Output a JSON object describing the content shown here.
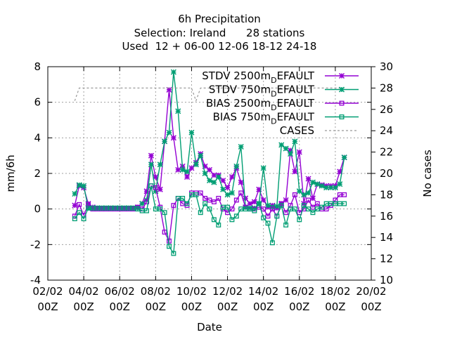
{
  "title_lines": [
    "6h Precipitation",
    "Selection: Ireland      28 stations",
    "Used  12 + 06-00 12-06 18-12 24-18"
  ],
  "chart_data": {
    "type": "line",
    "xlabel": "Date",
    "ylabel": "mm/6h",
    "y2label": "No cases",
    "xlim": [
      0,
      18
    ],
    "ylim": [
      -4,
      8
    ],
    "y2lim": [
      10,
      30
    ],
    "grid": true,
    "legend_position": "top-right",
    "x_ticks": [
      {
        "x": 0,
        "top": "02/02",
        "bottom": "00Z"
      },
      {
        "x": 2,
        "top": "04/02",
        "bottom": "00Z"
      },
      {
        "x": 4,
        "top": "06/02",
        "bottom": "00Z"
      },
      {
        "x": 6,
        "top": "08/02",
        "bottom": "00Z"
      },
      {
        "x": 8,
        "top": "10/02",
        "bottom": "00Z"
      },
      {
        "x": 10,
        "top": "12/02",
        "bottom": "00Z"
      },
      {
        "x": 12,
        "top": "14/02",
        "bottom": "00Z"
      },
      {
        "x": 14,
        "top": "16/02",
        "bottom": "00Z"
      },
      {
        "x": 16,
        "top": "18/02",
        "bottom": "00Z"
      },
      {
        "x": 18,
        "top": "20/02",
        "bottom": "00Z"
      }
    ],
    "y_ticks": [
      "-4",
      "-2",
      "0",
      "2",
      "4",
      "6",
      "8"
    ],
    "y2_ticks": [
      "10",
      "12",
      "14",
      "16",
      "18",
      "20",
      "22",
      "24",
      "26",
      "28",
      "30"
    ],
    "x": [
      1.5,
      1.75,
      2.0,
      2.25,
      2.5,
      2.75,
      3.0,
      3.25,
      3.5,
      3.75,
      4.0,
      4.25,
      4.5,
      4.75,
      5.0,
      5.25,
      5.5,
      5.75,
      6.0,
      6.25,
      6.5,
      6.75,
      7.0,
      7.25,
      7.5,
      7.75,
      8.0,
      8.25,
      8.5,
      8.75,
      9.0,
      9.25,
      9.5,
      9.75,
      10.0,
      10.25,
      10.5,
      10.75,
      11.0,
      11.25,
      11.5,
      11.75,
      12.0,
      12.25,
      12.5,
      12.75,
      13.0,
      13.25,
      13.5,
      13.75,
      14.0,
      14.25,
      14.5,
      14.75,
      15.0,
      15.25,
      15.5,
      15.75,
      16.0,
      16.25,
      16.5
    ],
    "series": [
      {
        "name": "STDV 2500m_DEFAULT",
        "color": "#9400d3",
        "marker": "star",
        "axis": "y",
        "values": [
          0.2,
          1.3,
          1.2,
          0.3,
          0.1,
          0.05,
          0.05,
          0.05,
          0.05,
          0.05,
          0.05,
          0.05,
          0.05,
          0.05,
          0.1,
          0.3,
          1.0,
          3.0,
          1.8,
          1.1,
          3.8,
          6.7,
          4.0,
          2.2,
          2.4,
          1.8,
          2.3,
          2.6,
          3.1,
          2.4,
          2.2,
          1.9,
          1.9,
          1.6,
          1.2,
          1.8,
          2.3,
          1.5,
          0.6,
          0.3,
          0.4,
          1.1,
          0.5,
          0.1,
          0.2,
          0.05,
          0.3,
          0.5,
          3.3,
          2.1,
          3.2,
          0.3,
          1.7,
          0.6,
          1.4,
          1.35,
          1.3,
          1.3,
          1.3,
          2.1,
          2.9
        ]
      },
      {
        "name": "STDV 750m_DEFAULT",
        "color": "#009e73",
        "marker": "star",
        "axis": "y",
        "values": [
          0.85,
          1.35,
          1.3,
          0.05,
          0.05,
          0.05,
          0.05,
          0.05,
          0.05,
          0.05,
          0.05,
          0.05,
          0.05,
          0.05,
          0.05,
          0.3,
          0.5,
          2.5,
          1.0,
          2.5,
          3.8,
          4.3,
          7.7,
          5.5,
          2.2,
          2.1,
          4.3,
          2.5,
          3.0,
          2.0,
          1.6,
          1.5,
          1.8,
          1.1,
          0.8,
          0.9,
          2.4,
          3.5,
          0.1,
          0.05,
          0.05,
          0.3,
          2.3,
          0.2,
          0.1,
          0.15,
          3.6,
          3.4,
          3.1,
          3.8,
          1.0,
          0.8,
          0.9,
          1.5,
          1.4,
          1.3,
          1.2,
          1.2,
          1.2,
          1.4,
          2.9
        ]
      },
      {
        "name": "BIAS 2500m_DEFAULT",
        "color": "#9400d3",
        "marker": "square",
        "axis": "y",
        "values": [
          -0.4,
          0.25,
          -0.35,
          0.25,
          0.0,
          0.0,
          0.0,
          0.0,
          0.0,
          0.0,
          0.0,
          0.0,
          0.0,
          0.0,
          0.1,
          0.0,
          0.4,
          1.3,
          1.2,
          0.1,
          -1.3,
          -1.8,
          0.2,
          0.6,
          0.3,
          0.2,
          0.9,
          0.9,
          0.9,
          0.6,
          0.5,
          0.4,
          0.6,
          0.0,
          -0.2,
          0.0,
          0.5,
          0.9,
          0.1,
          0.0,
          0.0,
          0.1,
          0.0,
          -0.4,
          0.0,
          -0.4,
          0.3,
          -0.2,
          0.2,
          0.8,
          -0.2,
          0.0,
          0.5,
          0.1,
          0.3,
          0.0,
          0.0,
          0.2,
          0.5,
          0.8,
          0.8
        ]
      },
      {
        "name": "BIAS 750m_DEFAULT",
        "color": "#009e73",
        "marker": "square",
        "axis": "y",
        "values": [
          -0.55,
          -0.2,
          -0.55,
          0.05,
          0.05,
          0.05,
          0.05,
          0.05,
          0.05,
          0.05,
          0.05,
          0.05,
          0.05,
          0.05,
          0.0,
          -0.1,
          -0.1,
          1.3,
          0.0,
          0.0,
          -0.2,
          -2.1,
          -2.5,
          0.6,
          0.6,
          0.3,
          0.8,
          0.8,
          -0.2,
          0.3,
          0.0,
          -0.6,
          -0.9,
          0.1,
          0.1,
          -0.6,
          -0.4,
          0.0,
          0.0,
          0.0,
          -0.1,
          0.3,
          -0.5,
          -0.8,
          -1.9,
          -0.4,
          0.2,
          -0.9,
          0.0,
          0.0,
          -0.6,
          0.2,
          0.0,
          -0.2,
          0.0,
          0.1,
          0.3,
          0.3,
          0.3,
          0.3,
          0.3
        ]
      },
      {
        "name": "CASES",
        "color": "#999999",
        "style": "dashed",
        "axis": "y2",
        "x": [
          1.5,
          1.75,
          2.0,
          8.0,
          8.25,
          8.5,
          16.5
        ],
        "values": [
          26.8,
          28.0,
          28.0,
          28.0,
          26.8,
          28.0,
          28.0
        ]
      }
    ]
  }
}
